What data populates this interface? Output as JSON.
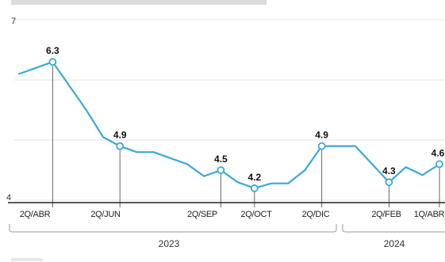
{
  "colors": {
    "line": "#3aa9d8",
    "grid": "#e3e3e3",
    "axis": "#222222"
  },
  "chart_data": {
    "type": "line",
    "y_ticks": [
      "7",
      "4"
    ],
    "ylim": [
      4,
      7
    ],
    "x_tick_labels": [
      "2Q/ABR",
      "2Q/JUN",
      "2Q/SEP",
      "2Q/OCT",
      "2Q/DIC",
      "2Q/FEB",
      "1Q/ABR"
    ],
    "year_labels": [
      "2023",
      "2024"
    ],
    "grid": true,
    "series": [
      {
        "values": [
          6.1,
          6.2,
          6.3,
          5.9,
          5.5,
          5.05,
          4.9,
          4.8,
          4.8,
          4.7,
          4.6,
          4.4,
          4.5,
          4.3,
          4.2,
          4.28,
          4.28,
          4.5,
          4.9,
          4.9,
          4.9,
          4.6,
          4.3,
          4.55,
          4.42,
          4.6
        ]
      }
    ],
    "labeled_points": [
      {
        "index": 2,
        "label": "6.3"
      },
      {
        "index": 6,
        "label": "4.9"
      },
      {
        "index": 12,
        "label": "4.5"
      },
      {
        "index": 14,
        "label": "4.2"
      },
      {
        "index": 18,
        "label": "4.9"
      },
      {
        "index": 22,
        "label": "4.3"
      },
      {
        "index": 25,
        "label": "4.6"
      }
    ]
  }
}
